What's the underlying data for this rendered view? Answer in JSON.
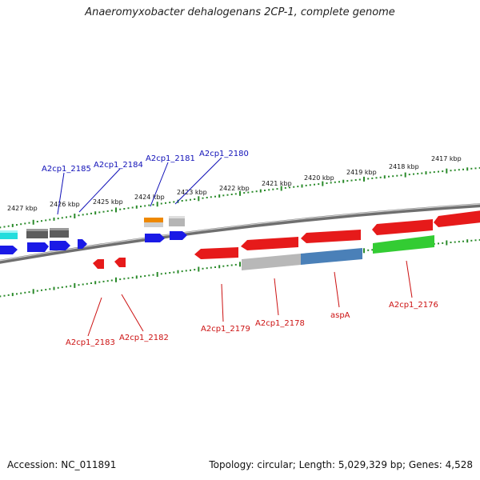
{
  "title": "Anaeromyxobacter dehalogenans 2CP-1, complete genome",
  "footer": {
    "accession": "Accession: NC_011891",
    "summary": "Topology: circular; Length: 5,029,329 bp; Genes: 4,528"
  },
  "scale_labels": [
    "2427 kbp",
    "2426 kbp",
    "2425 kbp",
    "2424 kbp",
    "2423 kbp",
    "2422 kbp",
    "2421 kbp",
    "2420 kbp",
    "2419 kbp",
    "2418 kbp",
    "2417 kbp"
  ],
  "gene_labels_top": [
    "A2cp1_2185",
    "A2cp1_2184",
    "A2cp1_2181",
    "A2cp1_2180"
  ],
  "gene_labels_bottom": [
    "A2cp1_2183",
    "A2cp1_2182",
    "A2cp1_2179",
    "A2cp1_2178",
    "aspA",
    "A2cp1_2176"
  ],
  "colors": {
    "forward_gene": "#1a1ae6",
    "reverse_gene": "#e61a1a",
    "cyan_gene": "#22dddd",
    "dark_gray_gene": "#666666",
    "light_gray_gene": "#bbbbbb",
    "orange_gene": "#ee8800",
    "steel_blue_gene": "#4a80b8",
    "green_gene": "#33cc33",
    "backbone": "#777777",
    "ticks": "#2a8a2a"
  }
}
